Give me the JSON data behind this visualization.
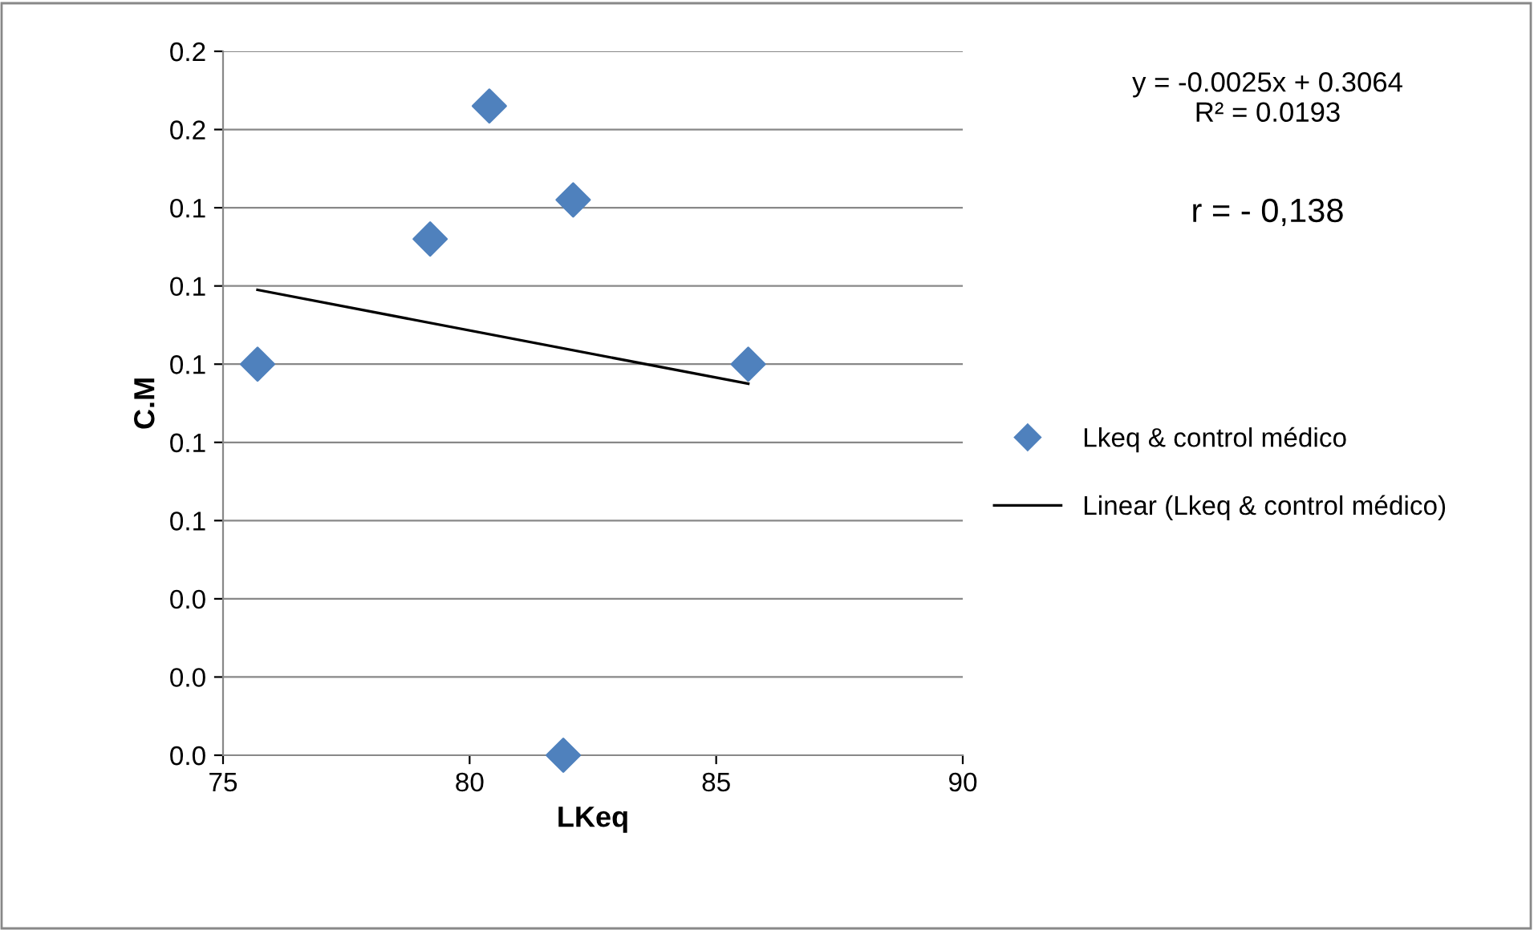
{
  "chart_data": {
    "type": "scatter",
    "xlabel": "LKeq",
    "ylabel": "C.M",
    "series": [
      {
        "name": "Lkeq & control médico",
        "color": "#4f81bd",
        "marker": "diamond",
        "x": [
          75.7,
          79.2,
          80.4,
          82.1,
          85.65,
          81.9
        ],
        "values": [
          0.1,
          0.132,
          0.166,
          0.142,
          0.1,
          0
        ]
      },
      {
        "name": "Linear (Lkeq & control médico)",
        "type": "line",
        "color": "#000000",
        "line_style": "solid",
        "marker": "none",
        "x": [
          75.7,
          85.65
        ],
        "values": [
          0.119,
          0.095
        ]
      }
    ],
    "xlim": [
      75,
      90
    ],
    "xticks": [
      75,
      80,
      85,
      90
    ],
    "ylim": [
      0,
      0.18
    ],
    "yticks": [
      {
        "value": 0,
        "label": "0.0"
      },
      {
        "value": 0.02,
        "label": "0.0"
      },
      {
        "value": 0.04,
        "label": "0.0"
      },
      {
        "value": 0.06,
        "label": "0.1"
      },
      {
        "value": 0.08,
        "label": "0.1"
      },
      {
        "value": 0.1,
        "label": "0.1"
      },
      {
        "value": 0.12,
        "label": "0.1"
      },
      {
        "value": 0.14,
        "label": "0.1"
      },
      {
        "value": 0.16,
        "label": "0.2"
      },
      {
        "value": 0.18,
        "label": "0.2"
      }
    ],
    "grid": "y",
    "legend": "right",
    "annotations": [
      "y = -0.0025x + 0.3064\nR² = 0.0193",
      "r = - 0,138"
    ]
  }
}
